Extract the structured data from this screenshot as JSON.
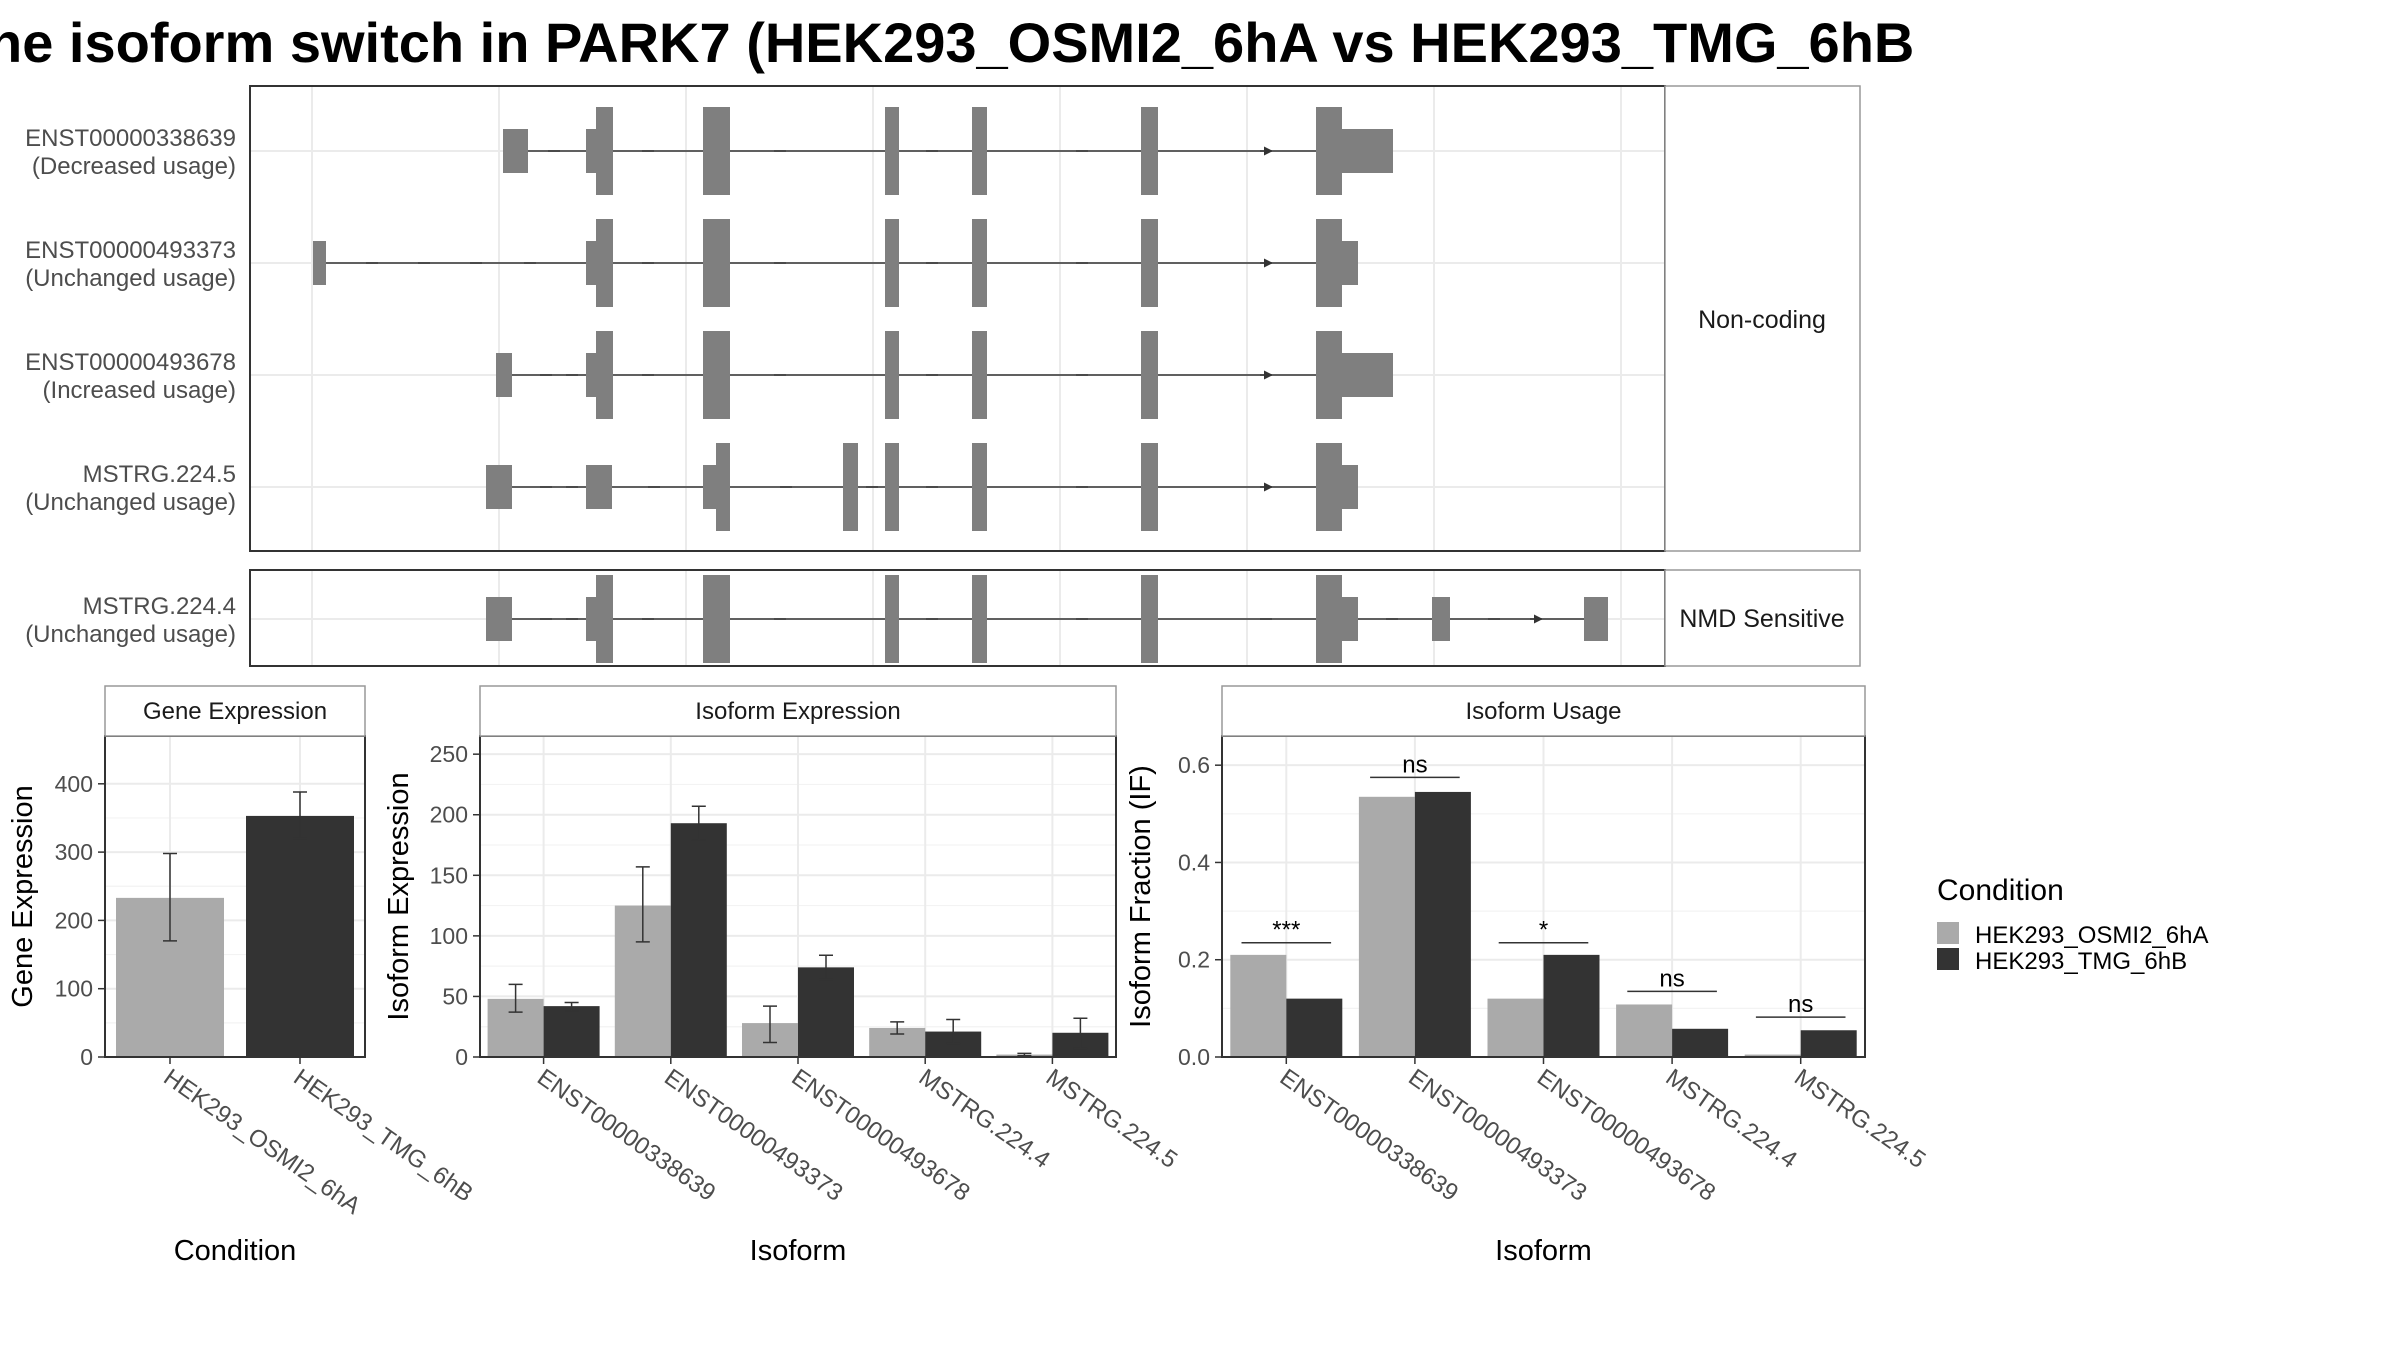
{
  "title": "he isoform switch in PARK7 (HEK293_OSMI2_6hA vs HEK293_TMG_6hB",
  "colors": {
    "exon": "#7f7f7f",
    "cond1": "#aaaaaa",
    "cond2": "#333333",
    "grid": "#ebebeb",
    "strip": "#ffffff",
    "border": "#333333"
  },
  "structure": {
    "groups": [
      {
        "label": "Non-coding",
        "transcripts": [
          {
            "name": "ENST00000338639",
            "usage": "(Decreased usage)"
          },
          {
            "name": "ENST00000493373",
            "usage": "(Unchanged usage)"
          },
          {
            "name": "ENST00000493678",
            "usage": "(Increased usage)"
          },
          {
            "name": "MSTRG.224.5",
            "usage": "(Unchanged usage)"
          }
        ]
      },
      {
        "label": "NMD Sensitive",
        "transcripts": [
          {
            "name": "MSTRG.224.4",
            "usage": "(Unchanged usage)"
          }
        ]
      }
    ]
  },
  "chart_data": [
    {
      "type": "bar",
      "title": "Gene Expression",
      "xlabel": "Condition",
      "ylabel": "Gene Expression",
      "categories": [
        "HEK293_OSMI2_6hA",
        "HEK293_TMG_6hB"
      ],
      "values": [
        233,
        353
      ],
      "errors": [
        [
          170,
          298
        ],
        [
          320,
          388
        ]
      ],
      "ylim": [
        0,
        470
      ],
      "yticks": [
        0,
        100,
        200,
        300,
        400
      ]
    },
    {
      "type": "bar",
      "title": "Isoform Expression",
      "xlabel": "Isoform",
      "ylabel": "Isoform Expression",
      "categories": [
        "ENST00000338639",
        "ENST00000493373",
        "ENST00000493678",
        "MSTRG.224.4",
        "MSTRG.224.5"
      ],
      "series": [
        {
          "name": "HEK293_OSMI2_6hA",
          "values": [
            48,
            125,
            28,
            24,
            2
          ],
          "errors": [
            [
              37,
              60
            ],
            [
              95,
              157
            ],
            [
              12,
              42
            ],
            [
              19,
              29
            ],
            [
              1,
              3
            ]
          ]
        },
        {
          "name": "HEK293_TMG_6hB",
          "values": [
            42,
            193,
            74,
            21,
            20
          ],
          "errors": [
            [
              38,
              45
            ],
            [
              179,
              207
            ],
            [
              64,
              84
            ],
            [
              11,
              31
            ],
            [
              7,
              32
            ]
          ]
        }
      ],
      "ylim": [
        0,
        265
      ],
      "yticks": [
        0,
        50,
        100,
        150,
        200,
        250
      ]
    },
    {
      "type": "bar",
      "title": "Isoform Usage",
      "xlabel": "Isoform",
      "ylabel": "Isoform Fraction (IF)",
      "categories": [
        "ENST00000338639",
        "ENST00000493373",
        "ENST00000493678",
        "MSTRG.224.4",
        "MSTRG.224.5"
      ],
      "series": [
        {
          "name": "HEK293_OSMI2_6hA",
          "values": [
            0.21,
            0.535,
            0.12,
            0.108,
            0.005
          ]
        },
        {
          "name": "HEK293_TMG_6hB",
          "values": [
            0.12,
            0.545,
            0.21,
            0.058,
            0.055
          ]
        }
      ],
      "significance": [
        {
          "label": "***",
          "y": 0.235
        },
        {
          "label": "ns",
          "y": 0.575
        },
        {
          "label": "*",
          "y": 0.235
        },
        {
          "label": "ns",
          "y": 0.135
        },
        {
          "label": "ns",
          "y": 0.082
        }
      ],
      "ylim": [
        0,
        0.66
      ],
      "yticks": [
        0.0,
        0.2,
        0.4,
        0.6
      ],
      "ytick_labels": [
        "0.0",
        "0.2",
        "0.4",
        "0.6"
      ]
    }
  ],
  "legend": {
    "title": "Condition",
    "placement": "right",
    "items": [
      "HEK293_OSMI2_6hA",
      "HEK293_TMG_6hB"
    ]
  }
}
